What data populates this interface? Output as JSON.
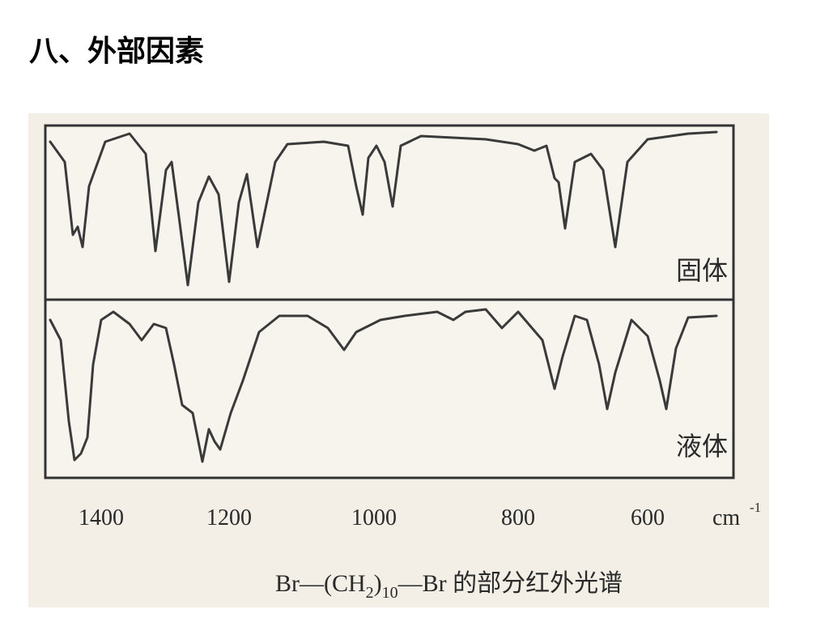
{
  "header": {
    "title": "八、外部因素"
  },
  "figure": {
    "panels": [
      "固体",
      "液体"
    ],
    "axis_labels": [
      "1400",
      "1200",
      "1000",
      "800",
      "600"
    ],
    "unit": {
      "base": "cm",
      "exponent": "-1"
    },
    "caption": [
      "Br—(CH",
      "2",
      ")",
      "10",
      "—Br 的部分红外光谱"
    ]
  }
}
